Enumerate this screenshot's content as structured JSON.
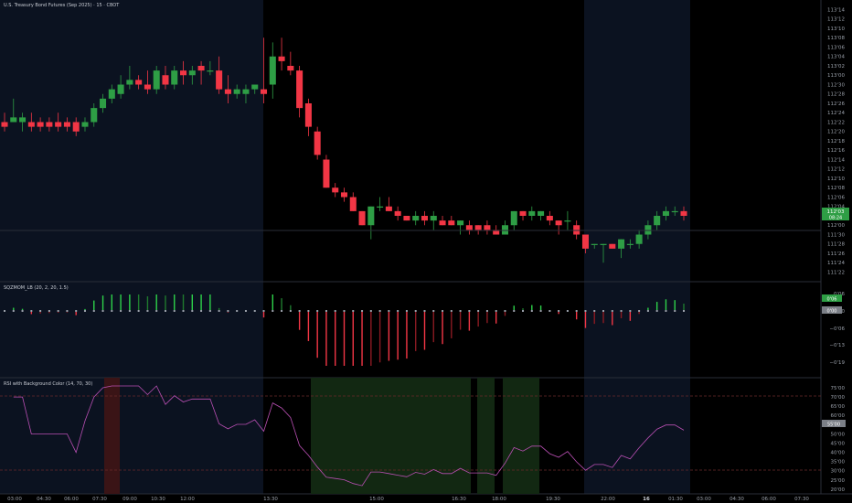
{
  "chart_title": "U.S. Treasury Bond Futures (Sep 2025) · 15 · CBOT",
  "colors": {
    "up": "#2e9e45",
    "down": "#f23645",
    "session_bg": "#0b1220",
    "rsi_line": "#b94fb3",
    "rsi_band_green": "#122812",
    "rsi_band_red": "#3a1416",
    "last_price_box": "#2e9e45",
    "grid_dash": "#5a1e1e"
  },
  "price_axis": {
    "labels": [
      "113'14",
      "113'12",
      "113'10",
      "113'08",
      "113'06",
      "113'04",
      "113'02",
      "113'00",
      "112'30",
      "112'28",
      "112'26",
      "112'24",
      "112'22",
      "112'20",
      "112'18",
      "112'16",
      "112'14",
      "112'12",
      "112'10",
      "112'08",
      "112'06",
      "112'04",
      "112'02",
      "112'00",
      "111'30",
      "111'28",
      "111'26",
      "111'24",
      "111'22"
    ],
    "last_price": "112'03",
    "last_price_sub": "08:24"
  },
  "sqzmom": {
    "title": "SQZMOM_LB (20, 2, 20, 1.5)",
    "axis_labels": [
      "0'06",
      "0'00",
      "−0'06",
      "−0'13",
      "−0'19"
    ],
    "value_box": "0'06",
    "value_box2": "0'00"
  },
  "rsi": {
    "title": "RSI with Background Color (14, 70, 30)",
    "axis_labels": [
      "75'00",
      "70'00",
      "65'00",
      "60'00",
      "55'00",
      "50'00",
      "45'00",
      "40'00",
      "35'00",
      "30'00",
      "25'00",
      "20'00"
    ],
    "value_box": "55'00"
  },
  "time_axis": {
    "labels": [
      "03:00",
      "04:30",
      "06:00",
      "07:30",
      "09:00",
      "10:30",
      "12:00",
      "13:30",
      "15:00",
      "16:30",
      "18:00",
      "19:30",
      "22:00",
      "16",
      "01:30",
      "03:00",
      "04:30",
      "06:00",
      "07:30"
    ]
  },
  "chart_data": {
    "type": "candlestick",
    "title": "U.S. Treasury Bond Futures (Sep 2025) · 15 · CBOT",
    "y_unit": "price (32nds)",
    "candles": [
      {
        "o": 112.22,
        "h": 112.24,
        "l": 112.2,
        "c": 112.21
      },
      {
        "o": 112.22,
        "h": 112.27,
        "l": 112.22,
        "c": 112.23
      },
      {
        "o": 112.22,
        "h": 112.24,
        "l": 112.2,
        "c": 112.23
      },
      {
        "o": 112.22,
        "h": 112.24,
        "l": 112.2,
        "c": 112.21
      },
      {
        "o": 112.22,
        "h": 112.23,
        "l": 112.2,
        "c": 112.21
      },
      {
        "o": 112.22,
        "h": 112.23,
        "l": 112.2,
        "c": 112.21
      },
      {
        "o": 112.22,
        "h": 112.24,
        "l": 112.2,
        "c": 112.21
      },
      {
        "o": 112.22,
        "h": 112.23,
        "l": 112.2,
        "c": 112.21
      },
      {
        "o": 112.22,
        "h": 112.23,
        "l": 112.19,
        "c": 112.2
      },
      {
        "o": 112.21,
        "h": 112.23,
        "l": 112.2,
        "c": 112.22
      },
      {
        "o": 112.22,
        "h": 112.26,
        "l": 112.21,
        "c": 112.25
      },
      {
        "o": 112.25,
        "h": 112.28,
        "l": 112.24,
        "c": 112.27
      },
      {
        "o": 112.27,
        "h": 112.3,
        "l": 112.26,
        "c": 112.29
      },
      {
        "o": 112.28,
        "h": 113.0,
        "l": 112.27,
        "c": 112.3
      },
      {
        "o": 112.3,
        "h": 113.02,
        "l": 112.29,
        "c": 112.31
      },
      {
        "o": 112.31,
        "h": 113.0,
        "l": 112.29,
        "c": 112.3
      },
      {
        "o": 112.3,
        "h": 113.01,
        "l": 112.28,
        "c": 112.29
      },
      {
        "o": 112.29,
        "h": 113.02,
        "l": 112.28,
        "c": 113.01
      },
      {
        "o": 113.0,
        "h": 113.02,
        "l": 112.29,
        "c": 112.3
      },
      {
        "o": 112.3,
        "h": 113.02,
        "l": 112.29,
        "c": 113.01
      },
      {
        "o": 113.01,
        "h": 113.03,
        "l": 112.3,
        "c": 113.0
      },
      {
        "o": 113.0,
        "h": 113.02,
        "l": 112.3,
        "c": 113.01
      },
      {
        "o": 113.02,
        "h": 113.03,
        "l": 112.3,
        "c": 113.01
      },
      {
        "o": 113.01,
        "h": 113.03,
        "l": 113.0,
        "c": 113.01
      },
      {
        "o": 113.01,
        "h": 113.04,
        "l": 112.28,
        "c": 112.29
      },
      {
        "o": 112.29,
        "h": 113.0,
        "l": 112.26,
        "c": 112.28
      },
      {
        "o": 112.28,
        "h": 112.3,
        "l": 112.27,
        "c": 112.29
      },
      {
        "o": 112.28,
        "h": 112.3,
        "l": 112.26,
        "c": 112.29
      },
      {
        "o": 112.29,
        "h": 112.3,
        "l": 112.28,
        "c": 112.3
      },
      {
        "o": 112.29,
        "h": 113.08,
        "l": 112.26,
        "c": 112.28
      },
      {
        "o": 112.3,
        "h": 113.07,
        "l": 112.27,
        "c": 113.04
      },
      {
        "o": 113.04,
        "h": 113.08,
        "l": 113.01,
        "c": 113.03
      },
      {
        "o": 113.02,
        "h": 113.05,
        "l": 113.0,
        "c": 113.01
      },
      {
        "o": 113.01,
        "h": 113.02,
        "l": 112.23,
        "c": 112.25
      },
      {
        "o": 112.26,
        "h": 112.27,
        "l": 112.19,
        "c": 112.21
      },
      {
        "o": 112.2,
        "h": 112.21,
        "l": 112.14,
        "c": 112.15
      },
      {
        "o": 112.14,
        "h": 112.15,
        "l": 112.08,
        "c": 112.08
      },
      {
        "o": 112.08,
        "h": 112.09,
        "l": 112.06,
        "c": 112.07
      },
      {
        "o": 112.07,
        "h": 112.08,
        "l": 112.05,
        "c": 112.06
      },
      {
        "o": 112.06,
        "h": 112.07,
        "l": 112.03,
        "c": 112.03
      },
      {
        "o": 112.03,
        "h": 112.03,
        "l": 112.0,
        "c": 112.0
      },
      {
        "o": 112.0,
        "h": 112.04,
        "l": 111.29,
        "c": 112.04
      },
      {
        "o": 112.04,
        "h": 112.06,
        "l": 112.03,
        "c": 112.04
      },
      {
        "o": 112.04,
        "h": 112.06,
        "l": 112.03,
        "c": 112.03
      },
      {
        "o": 112.03,
        "h": 112.04,
        "l": 112.01,
        "c": 112.02
      },
      {
        "o": 112.02,
        "h": 112.02,
        "l": 112.01,
        "c": 112.01
      },
      {
        "o": 112.01,
        "h": 112.03,
        "l": 112.0,
        "c": 112.02
      },
      {
        "o": 112.02,
        "h": 112.03,
        "l": 112.0,
        "c": 112.01
      },
      {
        "o": 112.01,
        "h": 112.03,
        "l": 111.31,
        "c": 112.02
      },
      {
        "o": 112.01,
        "h": 112.02,
        "l": 112.0,
        "c": 112.0
      },
      {
        "o": 112.01,
        "h": 112.02,
        "l": 112.0,
        "c": 112.0
      },
      {
        "o": 112.0,
        "h": 112.01,
        "l": 111.3,
        "c": 112.01
      },
      {
        "o": 112.0,
        "h": 112.01,
        "l": 111.3,
        "c": 111.31
      },
      {
        "o": 112.0,
        "h": 112.0,
        "l": 111.3,
        "c": 111.31
      },
      {
        "o": 112.0,
        "h": 112.01,
        "l": 111.3,
        "c": 111.31
      },
      {
        "o": 111.31,
        "h": 112.0,
        "l": 111.3,
        "c": 111.3
      },
      {
        "o": 111.3,
        "h": 112.01,
        "l": 111.3,
        "c": 112.0
      },
      {
        "o": 112.0,
        "h": 112.03,
        "l": 111.31,
        "c": 112.03
      },
      {
        "o": 112.03,
        "h": 112.03,
        "l": 112.01,
        "c": 112.02
      },
      {
        "o": 112.02,
        "h": 112.04,
        "l": 112.01,
        "c": 112.03
      },
      {
        "o": 112.02,
        "h": 112.03,
        "l": 112.01,
        "c": 112.03
      },
      {
        "o": 112.02,
        "h": 112.03,
        "l": 112.0,
        "c": 112.01
      },
      {
        "o": 112.01,
        "h": 112.01,
        "l": 111.3,
        "c": 112.0
      },
      {
        "o": 112.01,
        "h": 112.03,
        "l": 111.31,
        "c": 112.01
      },
      {
        "o": 112.0,
        "h": 112.01,
        "l": 111.29,
        "c": 111.3
      },
      {
        "o": 111.3,
        "h": 111.3,
        "l": 111.26,
        "c": 111.27
      },
      {
        "o": 111.28,
        "h": 111.28,
        "l": 111.27,
        "c": 111.28
      },
      {
        "o": 111.28,
        "h": 111.28,
        "l": 111.24,
        "c": 111.28
      },
      {
        "o": 111.28,
        "h": 111.28,
        "l": 111.27,
        "c": 111.27
      },
      {
        "o": 111.27,
        "h": 111.29,
        "l": 111.25,
        "c": 111.29
      },
      {
        "o": 111.28,
        "h": 111.29,
        "l": 111.27,
        "c": 111.28
      },
      {
        "o": 111.28,
        "h": 111.31,
        "l": 111.27,
        "c": 111.3
      },
      {
        "o": 111.3,
        "h": 112.01,
        "l": 111.29,
        "c": 112.0
      },
      {
        "o": 112.0,
        "h": 112.03,
        "l": 111.31,
        "c": 112.02
      },
      {
        "o": 112.02,
        "h": 112.04,
        "l": 112.01,
        "c": 112.03
      },
      {
        "o": 112.03,
        "h": 112.04,
        "l": 112.02,
        "c": 112.03
      },
      {
        "o": 112.03,
        "h": 112.04,
        "l": 112.01,
        "c": 112.02
      }
    ]
  }
}
